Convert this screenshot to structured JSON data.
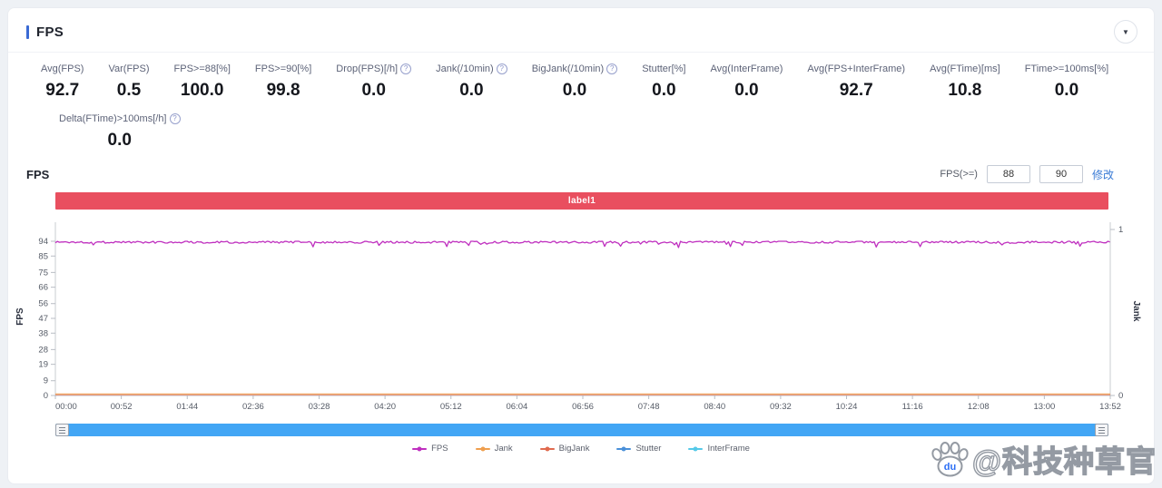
{
  "colors": {
    "accent_blue": "#3a6ad4",
    "banner_red": "#e94f5f",
    "scrollbar_blue": "#42a6f5",
    "link_blue": "#3a7bd5",
    "fps_line": "#bf2fbf",
    "jank_line": "#ef9f4e",
    "bigjank_line": "#e06a4e",
    "stutter_line": "#4a90d9",
    "interframe_line": "#55c9e8"
  },
  "icons": {
    "collapse_glyph": "▼",
    "info_glyph": "?"
  },
  "panel": {
    "title": "FPS"
  },
  "metrics": [
    {
      "label": "Avg(FPS)",
      "value": "92.7",
      "info": false
    },
    {
      "label": "Var(FPS)",
      "value": "0.5",
      "info": false
    },
    {
      "label": "FPS>=88[%]",
      "value": "100.0",
      "info": false
    },
    {
      "label": "FPS>=90[%]",
      "value": "99.8",
      "info": false
    },
    {
      "label": "Drop(FPS)[/h]",
      "value": "0.0",
      "info": true
    },
    {
      "label": "Jank(/10min)",
      "value": "0.0",
      "info": true
    },
    {
      "label": "BigJank(/10min)",
      "value": "0.0",
      "info": true
    },
    {
      "label": "Stutter[%]",
      "value": "0.0",
      "info": false
    },
    {
      "label": "Avg(InterFrame)",
      "value": "0.0",
      "info": false
    },
    {
      "label": "Avg(FPS+InterFrame)",
      "value": "92.7",
      "info": false
    },
    {
      "label": "Avg(FTime)[ms]",
      "value": "10.8",
      "info": false
    },
    {
      "label": "FTime>=100ms[%]",
      "value": "0.0",
      "info": false
    }
  ],
  "metrics_row2": [
    {
      "label": "Delta(FTime)>100ms[/h]",
      "value": "0.0",
      "info": true
    }
  ],
  "chart_controls": {
    "section_title": "FPS",
    "threshold_label": "FPS(>=)",
    "threshold_value_1": "88",
    "threshold_value_2": "90",
    "apply_label": "修改"
  },
  "chart_data": {
    "type": "line",
    "banner_label": "label1",
    "x_tick_labels": [
      "00:00",
      "00:52",
      "01:44",
      "02:36",
      "03:28",
      "04:20",
      "05:12",
      "06:04",
      "06:56",
      "07:48",
      "08:40",
      "09:32",
      "10:24",
      "11:16",
      "12:08",
      "13:00",
      "13:52"
    ],
    "duration_seconds": 832,
    "y_left": {
      "label": "FPS",
      "ticks": [
        94,
        85,
        75,
        66,
        56,
        47,
        38,
        28,
        19,
        9,
        0
      ],
      "min": 0,
      "max": 94
    },
    "y_right": {
      "label": "Jank",
      "ticks": [
        1,
        0
      ],
      "min": 0,
      "max": 1
    },
    "grid": false,
    "legend_position": "bottom",
    "series": [
      {
        "name": "FPS",
        "color": "#bf2fbf",
        "shape": "noisy-flat",
        "mean": 93.5,
        "noise": 0.7,
        "dip_chance": 0.03,
        "dip_depth": 2.2
      },
      {
        "name": "Jank",
        "color": "#ef9f4e",
        "shape": "constant",
        "value": 0
      },
      {
        "name": "BigJank",
        "color": "#e06a4e",
        "shape": "constant",
        "value": 0
      },
      {
        "name": "Stutter",
        "color": "#4a90d9",
        "shape": "constant",
        "value": 0
      },
      {
        "name": "InterFrame",
        "color": "#55c9e8",
        "shape": "constant",
        "value": 0
      }
    ]
  },
  "watermark": {
    "text": "@科技种草官",
    "paw_label": "du"
  }
}
